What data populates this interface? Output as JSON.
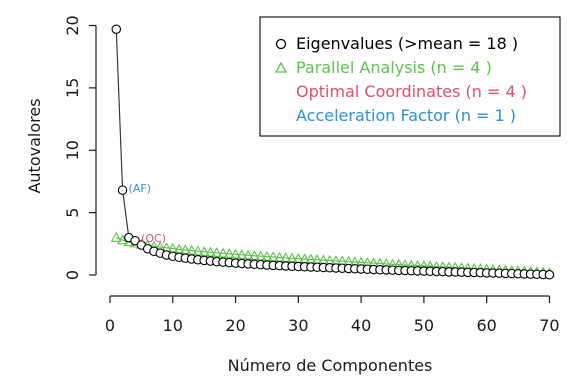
{
  "chart_data": {
    "type": "scatter",
    "title": "",
    "xlabel": "Número de Componentes",
    "ylabel": "Autovalores",
    "xlim": [
      0,
      72
    ],
    "ylim": [
      -0.8,
      20.6
    ],
    "xticks": [
      0,
      10,
      20,
      30,
      40,
      50,
      60,
      70
    ],
    "yticks": [
      0,
      5,
      10,
      15,
      20
    ],
    "grid": false,
    "legend_position": "top-right",
    "legend": [
      {
        "marker": "○",
        "label": "Eigenvalues (>mean  =  18 )",
        "color": "#000000"
      },
      {
        "marker": "△",
        "label": "Parallel Analysis (n =  4 )",
        "color": "#5ec24e"
      },
      {
        "marker": "",
        "label": "Optimal Coordinates (n =  4 )",
        "color": "#e0506b"
      },
      {
        "marker": "",
        "label": "Acceleration Factor (n =  1 )",
        "color": "#2d8fd6"
      }
    ],
    "annotations": [
      {
        "text": "(AF)",
        "x": 2,
        "y": 6.8,
        "color": "#2d8fd6"
      },
      {
        "text": "(OC)",
        "x": 4,
        "y": 2.8,
        "color": "#e0506b"
      }
    ],
    "series": [
      {
        "name": "Eigenvalues",
        "marker": "circle",
        "color": "#000000",
        "x": [
          1,
          2,
          3,
          4,
          5,
          6,
          7,
          8,
          9,
          10,
          11,
          12,
          13,
          14,
          15,
          16,
          17,
          18,
          19,
          20,
          21,
          22,
          23,
          24,
          25,
          26,
          27,
          28,
          29,
          30,
          31,
          32,
          33,
          34,
          35,
          36,
          37,
          38,
          39,
          40,
          41,
          42,
          43,
          44,
          45,
          46,
          47,
          48,
          49,
          50,
          51,
          52,
          53,
          54,
          55,
          56,
          57,
          58,
          59,
          60,
          61,
          62,
          63,
          64,
          65,
          66,
          67,
          68,
          69,
          70
        ],
        "values": [
          19.7,
          6.8,
          3.0,
          2.75,
          2.4,
          2.1,
          1.9,
          1.75,
          1.6,
          1.5,
          1.42,
          1.35,
          1.28,
          1.22,
          1.17,
          1.12,
          1.07,
          1.03,
          0.99,
          0.95,
          0.92,
          0.89,
          0.86,
          0.83,
          0.8,
          0.77,
          0.75,
          0.72,
          0.7,
          0.68,
          0.66,
          0.64,
          0.62,
          0.6,
          0.58,
          0.56,
          0.54,
          0.52,
          0.5,
          0.48,
          0.46,
          0.44,
          0.42,
          0.41,
          0.39,
          0.37,
          0.36,
          0.34,
          0.33,
          0.31,
          0.3,
          0.28,
          0.27,
          0.25,
          0.24,
          0.23,
          0.21,
          0.2,
          0.19,
          0.17,
          0.16,
          0.15,
          0.13,
          0.12,
          0.1,
          0.09,
          0.07,
          0.06,
          0.04,
          0.02
        ]
      },
      {
        "name": "Parallel Analysis",
        "marker": "triangle",
        "color": "#5ec24e",
        "x": [
          1,
          2,
          3,
          4,
          5,
          6,
          7,
          8,
          9,
          10,
          11,
          12,
          13,
          14,
          15,
          16,
          17,
          18,
          19,
          20,
          21,
          22,
          23,
          24,
          25,
          26,
          27,
          28,
          29,
          30,
          31,
          32,
          33,
          34,
          35,
          36,
          37,
          38,
          39,
          40,
          41,
          42,
          43,
          44,
          45,
          46,
          47,
          48,
          49,
          50,
          51,
          52,
          53,
          54,
          55,
          56,
          57,
          58,
          59,
          60,
          61,
          62,
          63,
          64,
          65,
          66,
          67,
          68,
          69,
          70
        ],
        "values": [
          3.0,
          2.8,
          2.65,
          2.55,
          2.45,
          2.38,
          2.3,
          2.24,
          2.18,
          2.12,
          2.06,
          2.01,
          1.96,
          1.91,
          1.86,
          1.82,
          1.78,
          1.74,
          1.7,
          1.66,
          1.62,
          1.58,
          1.54,
          1.51,
          1.47,
          1.44,
          1.4,
          1.37,
          1.34,
          1.31,
          1.28,
          1.25,
          1.22,
          1.19,
          1.16,
          1.13,
          1.1,
          1.07,
          1.04,
          1.01,
          0.98,
          0.95,
          0.92,
          0.89,
          0.86,
          0.84,
          0.81,
          0.78,
          0.75,
          0.73,
          0.7,
          0.67,
          0.65,
          0.62,
          0.59,
          0.57,
          0.54,
          0.51,
          0.49,
          0.46,
          0.43,
          0.41,
          0.38,
          0.35,
          0.33,
          0.3,
          0.27,
          0.24,
          0.21,
          0.17
        ]
      }
    ],
    "colors": {
      "oc_line": "#e0506b",
      "frame": "#1a1a1a",
      "connector": "#333333"
    }
  }
}
